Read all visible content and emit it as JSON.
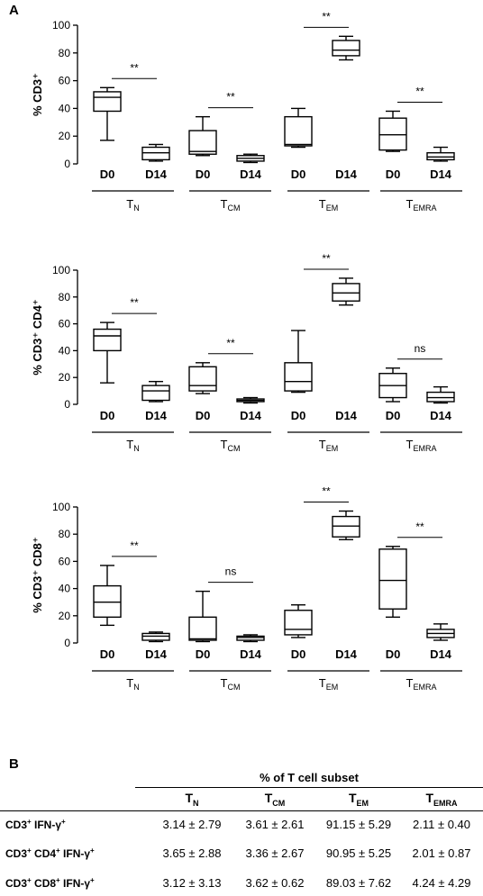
{
  "panel_a_letter": "A",
  "panel_b_letter": "B",
  "chart_data": [
    {
      "type": "box",
      "ylabel": "% CD3⁺",
      "ylim": [
        0,
        100
      ],
      "yticks": [
        "0",
        "20",
        "40",
        "60",
        "80",
        "100"
      ],
      "categories": [
        "D0",
        "D14",
        "D0",
        "D14",
        "D0",
        "D14",
        "D0",
        "D14"
      ],
      "groups": [
        {
          "label": "T",
          "sub": "N"
        },
        {
          "label": "T",
          "sub": "CM"
        },
        {
          "label": "T",
          "sub": "EM"
        },
        {
          "label": "T",
          "sub": "EMRA"
        }
      ],
      "boxes": [
        {
          "min": 17,
          "q1": 38,
          "median": 48,
          "q3": 52,
          "max": 55
        },
        {
          "min": 2,
          "q1": 3,
          "median": 8,
          "q3": 12,
          "max": 14
        },
        {
          "min": 6,
          "q1": 7,
          "median": 9,
          "q3": 24,
          "max": 34
        },
        {
          "min": 1,
          "q1": 2,
          "median": 4,
          "q3": 6,
          "max": 7
        },
        {
          "min": 12,
          "q1": 13,
          "median": 14,
          "q3": 34,
          "max": 40
        },
        {
          "min": 75,
          "q1": 78,
          "median": 82,
          "q3": 89,
          "max": 92
        },
        {
          "min": 9,
          "q1": 10,
          "median": 21,
          "q3": 33,
          "max": 38
        },
        {
          "min": 2,
          "q1": 3,
          "median": 5,
          "q3": 8,
          "max": 12
        }
      ],
      "significance": [
        "**",
        "**",
        "**",
        "**"
      ]
    },
    {
      "type": "box",
      "ylabel": "% CD3⁺ CD4⁺",
      "ylim": [
        0,
        100
      ],
      "yticks": [
        "0",
        "20",
        "40",
        "60",
        "80",
        "100"
      ],
      "categories": [
        "D0",
        "D14",
        "D0",
        "D14",
        "D0",
        "D14",
        "D0",
        "D14"
      ],
      "groups": [
        {
          "label": "T",
          "sub": "N"
        },
        {
          "label": "T",
          "sub": "CM"
        },
        {
          "label": "T",
          "sub": "EM"
        },
        {
          "label": "T",
          "sub": "EMRA"
        }
      ],
      "boxes": [
        {
          "min": 16,
          "q1": 40,
          "median": 51,
          "q3": 56,
          "max": 61
        },
        {
          "min": 2,
          "q1": 3,
          "median": 10,
          "q3": 14,
          "max": 17
        },
        {
          "min": 8,
          "q1": 10,
          "median": 14,
          "q3": 28,
          "max": 31
        },
        {
          "min": 1,
          "q1": 2,
          "median": 3,
          "q3": 4,
          "max": 5
        },
        {
          "min": 9,
          "q1": 10,
          "median": 17,
          "q3": 31,
          "max": 55
        },
        {
          "min": 74,
          "q1": 77,
          "median": 83,
          "q3": 90,
          "max": 94
        },
        {
          "min": 2,
          "q1": 5,
          "median": 14,
          "q3": 23,
          "max": 27
        },
        {
          "min": 1,
          "q1": 2,
          "median": 5,
          "q3": 9,
          "max": 13
        }
      ],
      "significance": [
        "**",
        "**",
        "**",
        "ns"
      ]
    },
    {
      "type": "box",
      "ylabel": "% CD3⁺ CD8⁺",
      "ylim": [
        0,
        100
      ],
      "yticks": [
        "0",
        "20",
        "40",
        "60",
        "80",
        "100"
      ],
      "categories": [
        "D0",
        "D14",
        "D0",
        "D14",
        "D0",
        "D14",
        "D0",
        "D14"
      ],
      "groups": [
        {
          "label": "T",
          "sub": "N"
        },
        {
          "label": "T",
          "sub": "CM"
        },
        {
          "label": "T",
          "sub": "EM"
        },
        {
          "label": "T",
          "sub": "EMRA"
        }
      ],
      "boxes": [
        {
          "min": 13,
          "q1": 19,
          "median": 30,
          "q3": 42,
          "max": 57
        },
        {
          "min": 1,
          "q1": 2,
          "median": 5,
          "q3": 7,
          "max": 8
        },
        {
          "min": 1,
          "q1": 2,
          "median": 3,
          "q3": 19,
          "max": 38
        },
        {
          "min": 1,
          "q1": 2,
          "median": 4,
          "q3": 5,
          "max": 6
        },
        {
          "min": 4,
          "q1": 6,
          "median": 10,
          "q3": 24,
          "max": 28
        },
        {
          "min": 76,
          "q1": 78,
          "median": 86,
          "q3": 93,
          "max": 97
        },
        {
          "min": 19,
          "q1": 25,
          "median": 46,
          "q3": 69,
          "max": 71
        },
        {
          "min": 2,
          "q1": 4,
          "median": 7,
          "q3": 10,
          "max": 14
        }
      ],
      "significance": [
        "**",
        "ns",
        "**",
        "**"
      ]
    },
    {
      "type": "table",
      "title": "% of T cell subset",
      "columns": [
        {
          "label": "T",
          "sub": "N"
        },
        {
          "label": "T",
          "sub": "CM"
        },
        {
          "label": "T",
          "sub": "EM"
        },
        {
          "label": "T",
          "sub": "EMRA"
        }
      ],
      "rows": [
        {
          "label_parts": [
            "CD3",
            "+",
            " IFN-γ",
            "+"
          ],
          "values": [
            "3.14 ± 2.79",
            "3.61 ± 2.61",
            "91.15 ± 5.29",
            "2.11 ± 0.40"
          ]
        },
        {
          "label_parts": [
            "CD3",
            "+",
            " CD4",
            "+",
            " IFN-γ",
            "+"
          ],
          "values": [
            "3.65 ± 2.88",
            "3.36 ± 2.67",
            "90.95 ± 5.25",
            "2.01 ± 0.87"
          ]
        },
        {
          "label_parts": [
            "CD3",
            "+",
            " CD8",
            "+",
            " IFN-γ",
            "+"
          ],
          "values": [
            "3.12 ± 3.13",
            "3.62 ± 0.62",
            "89.03 ± 7.62",
            "4.24 ± 4.29"
          ]
        }
      ]
    }
  ]
}
